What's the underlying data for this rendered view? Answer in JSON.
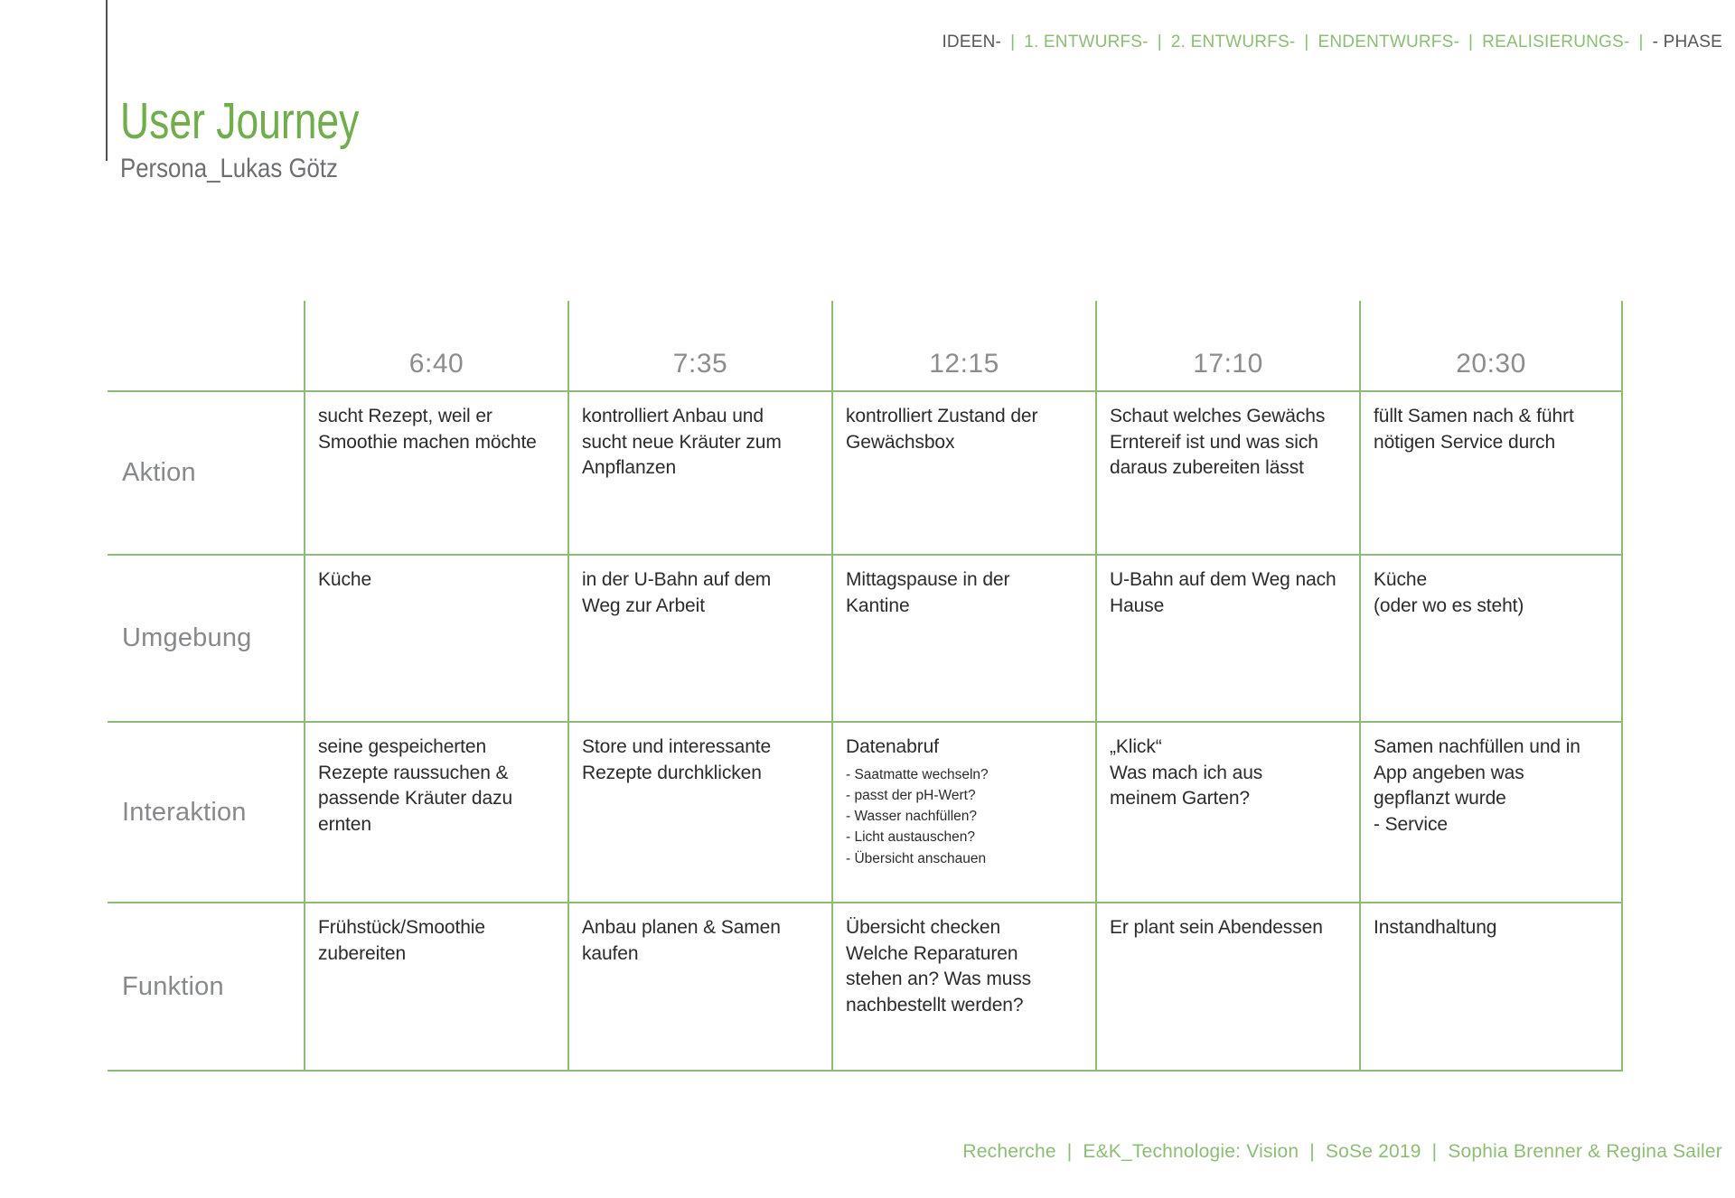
{
  "nav": {
    "separator": "|",
    "items": [
      {
        "label": "IDEEN-",
        "dark": true
      },
      {
        "label": "1. ENTWURFS-",
        "dark": false
      },
      {
        "label": "2. ENTWURFS-",
        "dark": false
      },
      {
        "label": "ENDENTWURFS-",
        "dark": false
      },
      {
        "label": "REALISIERUNGS-",
        "dark": false
      },
      {
        "label": "- PHASE",
        "dark": true
      }
    ]
  },
  "header": {
    "title": "User Journey",
    "subtitle": "Persona_Lukas Götz"
  },
  "table": {
    "time_columns": [
      "6:40",
      "7:35",
      "12:15",
      "17:10",
      "20:30"
    ],
    "row_headers": [
      "Aktion",
      "Umgebung",
      "Interaktion",
      "Funktion"
    ],
    "rows": [
      {
        "label": "Aktion",
        "cells": [
          {
            "text": "sucht Rezept, weil er\nSmoothie machen möchte"
          },
          {
            "text": "kontrolliert Anbau und\nsucht neue Kräuter zum\nAnpflanzen"
          },
          {
            "text": "kontrolliert Zustand der\nGewächsbox"
          },
          {
            "text": "Schaut welches Gewächs\nErntereif ist und was sich\ndaraus zubereiten lässt"
          },
          {
            "text": "füllt Samen nach & führt\nnötigen Service durch"
          }
        ]
      },
      {
        "label": "Umgebung",
        "cells": [
          {
            "text": "Küche"
          },
          {
            "text": "in der U-Bahn auf dem\nWeg zur Arbeit"
          },
          {
            "text": "Mittagspause in der\nKantine"
          },
          {
            "text": "U-Bahn auf dem Weg nach\nHause"
          },
          {
            "text": "Küche\n(oder wo es steht)"
          }
        ]
      },
      {
        "label": "Interaktion",
        "cells": [
          {
            "text": "seine gespeicherten\nRezepte raussuchen &\npassende Kräuter dazu\nernten"
          },
          {
            "text": "Store und interessante\nRezepte durchklicken"
          },
          {
            "text": "Datenabruf",
            "sub": [
              "- Saatmatte wechseln?",
              "- passt der pH-Wert?",
              "- Wasser nachfüllen?",
              "- Licht austauschen?",
              "- Übersicht anschauen"
            ]
          },
          {
            "text": "„Klick“\nWas mach ich aus\nmeinem Garten?"
          },
          {
            "text": "Samen nachfüllen und in\nApp angeben was\ngepflanzt wurde\n- Service"
          }
        ]
      },
      {
        "label": "Funktion",
        "cells": [
          {
            "text": "Frühstück/Smoothie\nzubereiten"
          },
          {
            "text": "Anbau planen & Samen\nkaufen"
          },
          {
            "text": "Übersicht checken\nWelche Reparaturen\nstehen an? Was muss\nnachbestellt werden?"
          },
          {
            "text": "Er plant sein Abendessen"
          },
          {
            "text": "Instandhaltung"
          }
        ]
      }
    ]
  },
  "footer": {
    "separator": "|",
    "items": [
      "Recherche",
      "E&K_Technologie: Vision",
      "SoSe 2019",
      "Sophia Brenner & Regina Sailer"
    ]
  },
  "colors": {
    "accent_green": "#6fad4d",
    "grid_green": "#8cbd74",
    "dark_gray": "#55565a",
    "label_gray": "#87898c",
    "time_gray": "#8a8c8f",
    "cell_text": "#2b2b2b"
  }
}
